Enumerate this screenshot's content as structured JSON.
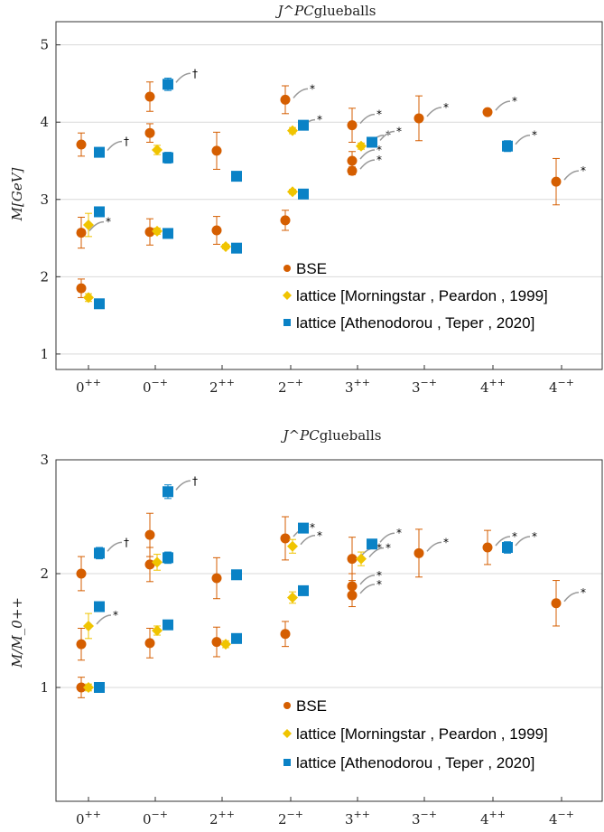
{
  "colors": {
    "bse": "#d55e00",
    "morningstar": "#f0c400",
    "athenodorou": "#0a82c6",
    "grid": "#d9d9d9",
    "frame": "#333333"
  },
  "categories": [
    "0++",
    "0−+",
    "2++",
    "2−+",
    "3++",
    "3−+",
    "4++",
    "4−+"
  ],
  "legend": {
    "bse": "BSE",
    "morningstar": "lattice [Morningstar , Peardon , 1999]",
    "athenodorou": "lattice [Athenodorou , Teper , 2020]"
  },
  "chart_data": [
    {
      "type": "scatter",
      "title_main": "J^PC",
      "title_sub": "glueballs",
      "ylabel": "M[GeV]",
      "ylim": [
        0.8,
        5.3
      ],
      "yticks": [
        1,
        2,
        3,
        4,
        5
      ],
      "grid": true,
      "legend_position": "bottom-right",
      "categories": [
        "0++",
        "0−+",
        "2++",
        "2−+",
        "3++",
        "3−+",
        "4++",
        "4−+"
      ],
      "series": [
        {
          "name": "BSE",
          "key": "bse",
          "marker": "circle",
          "points": [
            {
              "cat": 0,
              "y": 1.85,
              "err": 0.12
            },
            {
              "cat": 0,
              "y": 2.57,
              "err": 0.2,
              "note": "*"
            },
            {
              "cat": 0,
              "y": 3.71,
              "err": 0.15
            },
            {
              "cat": 1,
              "y": 2.58,
              "err": 0.17
            },
            {
              "cat": 1,
              "y": 3.86,
              "err": 0.12
            },
            {
              "cat": 1,
              "y": 4.33,
              "err": 0.19
            },
            {
              "cat": 2,
              "y": 2.6,
              "err": 0.18
            },
            {
              "cat": 2,
              "y": 3.63,
              "err": 0.24
            },
            {
              "cat": 3,
              "y": 2.73,
              "err": 0.13
            },
            {
              "cat": 3,
              "y": 4.29,
              "err": 0.18,
              "note": "*"
            },
            {
              "cat": 4,
              "y": 3.37,
              "err": 0.05,
              "note": "*"
            },
            {
              "cat": 4,
              "y": 3.5,
              "err": 0.12,
              "note": "*"
            },
            {
              "cat": 4,
              "y": 3.96,
              "err": 0.22,
              "note": "*"
            },
            {
              "cat": 5,
              "y": 4.05,
              "err": 0.29,
              "note": "*"
            },
            {
              "cat": 6,
              "y": 4.13,
              "err": 0.03,
              "note": "*"
            },
            {
              "cat": 7,
              "y": 3.23,
              "err": 0.3,
              "note": "*"
            }
          ]
        },
        {
          "name": "lattice [Morningstar , Peardon , 1999]",
          "key": "morningstar",
          "marker": "diamond",
          "points": [
            {
              "cat": 0,
              "y": 1.73,
              "err": 0.05
            },
            {
              "cat": 0,
              "y": 2.67,
              "err": 0.15
            },
            {
              "cat": 1,
              "y": 2.59,
              "err": 0.04
            },
            {
              "cat": 1,
              "y": 3.64,
              "err": 0.06
            },
            {
              "cat": 2,
              "y": 2.39,
              "err": 0.03
            },
            {
              "cat": 3,
              "y": 3.1,
              "err": 0.03
            },
            {
              "cat": 3,
              "y": 3.89,
              "err": 0.04,
              "note": "*"
            },
            {
              "cat": 4,
              "y": 3.69,
              "err": 0.04,
              "note": "*"
            }
          ]
        },
        {
          "name": "lattice [Athenodorou , Teper , 2020]",
          "key": "athenodorou",
          "marker": "square",
          "points": [
            {
              "cat": 0,
              "y": 1.65,
              "err": 0.02
            },
            {
              "cat": 0,
              "y": 2.84,
              "err": 0.04
            },
            {
              "cat": 0,
              "y": 3.61,
              "err": 0.06,
              "note": "†"
            },
            {
              "cat": 1,
              "y": 2.56,
              "err": 0.03
            },
            {
              "cat": 1,
              "y": 3.54,
              "err": 0.07
            },
            {
              "cat": 1,
              "y": 4.49,
              "err": 0.08,
              "note": "†"
            },
            {
              "cat": 2,
              "y": 2.37,
              "err": 0.03
            },
            {
              "cat": 2,
              "y": 3.3,
              "err": 0.04
            },
            {
              "cat": 3,
              "y": 3.07,
              "err": 0.03
            },
            {
              "cat": 3,
              "y": 3.96,
              "err": 0.05
            },
            {
              "cat": 4,
              "y": 3.74,
              "err": 0.05,
              "note": "*"
            },
            {
              "cat": 6,
              "y": 3.69,
              "err": 0.07,
              "note": "*"
            }
          ]
        }
      ]
    },
    {
      "type": "scatter",
      "title_main": "J^PC",
      "title_sub": "glueballs",
      "ylabel": "M/M_0++",
      "ylim": [
        0.0,
        3.0
      ],
      "yticks": [
        1,
        2,
        3
      ],
      "grid": true,
      "legend_position": "bottom-right",
      "categories": [
        "0++",
        "0−+",
        "2++",
        "2−+",
        "3++",
        "3−+",
        "4++",
        "4−+"
      ],
      "series": [
        {
          "name": "BSE",
          "key": "bse",
          "marker": "circle",
          "points": [
            {
              "cat": 0,
              "y": 1.0,
              "err": 0.09
            },
            {
              "cat": 0,
              "y": 1.38,
              "err": 0.14
            },
            {
              "cat": 0,
              "y": 2.0,
              "err": 0.15
            },
            {
              "cat": 1,
              "y": 1.39,
              "err": 0.13
            },
            {
              "cat": 1,
              "y": 2.08,
              "err": 0.15
            },
            {
              "cat": 1,
              "y": 2.34,
              "err": 0.19
            },
            {
              "cat": 2,
              "y": 1.4,
              "err": 0.13
            },
            {
              "cat": 2,
              "y": 1.96,
              "err": 0.18
            },
            {
              "cat": 3,
              "y": 1.47,
              "err": 0.11
            },
            {
              "cat": 3,
              "y": 2.31,
              "err": 0.19,
              "note": "*"
            },
            {
              "cat": 4,
              "y": 1.81,
              "err": 0.1,
              "note": "*"
            },
            {
              "cat": 4,
              "y": 1.89,
              "err": 0.11,
              "note": "*"
            },
            {
              "cat": 4,
              "y": 2.13,
              "err": 0.19,
              "note": "*"
            },
            {
              "cat": 5,
              "y": 2.18,
              "err": 0.21,
              "note": "*"
            },
            {
              "cat": 6,
              "y": 2.23,
              "err": 0.15,
              "note": "*"
            },
            {
              "cat": 7,
              "y": 1.74,
              "err": 0.2,
              "note": "*"
            }
          ]
        },
        {
          "name": "lattice [Morningstar , Peardon , 1999]",
          "key": "morningstar",
          "marker": "diamond",
          "points": [
            {
              "cat": 0,
              "y": 1.0,
              "err": 0.03
            },
            {
              "cat": 0,
              "y": 1.54,
              "err": 0.11,
              "note": "*"
            },
            {
              "cat": 1,
              "y": 1.5,
              "err": 0.04
            },
            {
              "cat": 1,
              "y": 2.1,
              "err": 0.07
            },
            {
              "cat": 2,
              "y": 1.38,
              "err": 0.03
            },
            {
              "cat": 3,
              "y": 1.79,
              "err": 0.05
            },
            {
              "cat": 3,
              "y": 2.24,
              "err": 0.06,
              "note": "*"
            },
            {
              "cat": 4,
              "y": 2.13,
              "err": 0.06,
              "note": "*"
            }
          ]
        },
        {
          "name": "lattice [Athenodorou , Teper , 2020]",
          "key": "athenodorou",
          "marker": "square",
          "points": [
            {
              "cat": 0,
              "y": 1.0,
              "err": 0.02
            },
            {
              "cat": 0,
              "y": 1.71,
              "err": 0.03
            },
            {
              "cat": 0,
              "y": 2.18,
              "err": 0.05,
              "note": "†"
            },
            {
              "cat": 1,
              "y": 1.55,
              "err": 0.03
            },
            {
              "cat": 1,
              "y": 2.14,
              "err": 0.05
            },
            {
              "cat": 1,
              "y": 2.72,
              "err": 0.06,
              "note": "†"
            },
            {
              "cat": 2,
              "y": 1.43,
              "err": 0.02
            },
            {
              "cat": 2,
              "y": 1.99,
              "err": 0.03
            },
            {
              "cat": 3,
              "y": 1.85,
              "err": 0.03
            },
            {
              "cat": 3,
              "y": 2.4,
              "err": 0.04
            },
            {
              "cat": 4,
              "y": 2.26,
              "err": 0.04,
              "note": "*"
            },
            {
              "cat": 6,
              "y": 2.23,
              "err": 0.05,
              "note": "*"
            }
          ]
        }
      ]
    }
  ]
}
